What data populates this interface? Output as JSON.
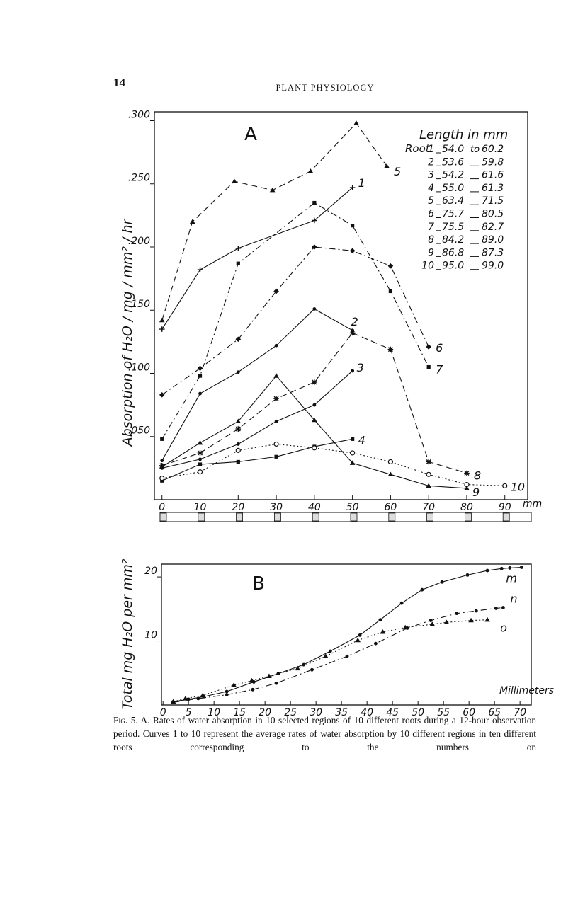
{
  "page_number": "14",
  "running_head": "PLANT PHYSIOLOGY",
  "chart_data": [
    {
      "type": "line",
      "title": "A",
      "y_label": "Absorption of H₂O / mg / mm² / hr",
      "x_label": "mm",
      "xlim": [
        -2,
        96
      ],
      "ylim": [
        0,
        0.307
      ],
      "xticks": [
        0,
        10,
        20,
        30,
        40,
        50,
        60,
        70,
        80,
        90
      ],
      "yticks": [
        {
          "value": 0.05,
          "label": ".050"
        },
        {
          "value": 0.1,
          "label": ".100"
        },
        {
          "value": 0.15,
          "label": ".150"
        },
        {
          "value": 0.2,
          "label": ".200"
        },
        {
          "value": 0.25,
          "label": ".250"
        },
        {
          "value": 0.3,
          "label": ".300"
        }
      ],
      "legend_table": {
        "title": "Length in mm",
        "row_label": "Root",
        "joiner": "to",
        "rows": [
          {
            "root": "1",
            "from": "54.0",
            "to": "60.2"
          },
          {
            "root": "2",
            "from": "53.6",
            "to": "59.8"
          },
          {
            "root": "3",
            "from": "54.2",
            "to": "61.6"
          },
          {
            "root": "4",
            "from": "55.0",
            "to": "61.3"
          },
          {
            "root": "5",
            "from": "63.4",
            "to": "71.5"
          },
          {
            "root": "6",
            "from": "75.7",
            "to": "80.5"
          },
          {
            "root": "7",
            "from": "75.5",
            "to": "82.7"
          },
          {
            "root": "8",
            "from": "84.2",
            "to": "89.0"
          },
          {
            "root": "9",
            "from": "86.8",
            "to": "87.3"
          },
          {
            "root": "10",
            "from": "95.0",
            "to": "99.0"
          }
        ]
      },
      "series": [
        {
          "name": "1",
          "color": "#111111",
          "dash": "solid",
          "marker": "plus",
          "x": [
            0,
            10,
            20,
            40,
            50
          ],
          "values": [
            0.135,
            0.182,
            0.199,
            0.221,
            0.247
          ]
        },
        {
          "name": "2",
          "color": "#111111",
          "dash": "solid",
          "marker": "dot",
          "x": [
            0,
            10,
            20,
            30,
            40,
            50
          ],
          "values": [
            0.031,
            0.084,
            0.101,
            0.122,
            0.151,
            0.134
          ]
        },
        {
          "name": "3",
          "color": "#111111",
          "dash": "solid",
          "marker": "dot",
          "x": [
            0,
            10,
            20,
            30,
            40,
            50
          ],
          "values": [
            0.025,
            0.032,
            0.044,
            0.062,
            0.075,
            0.102
          ]
        },
        {
          "name": "4",
          "color": "#111111",
          "dash": "solid",
          "marker": "square",
          "x": [
            0,
            10,
            20,
            30,
            40,
            50
          ],
          "values": [
            0.015,
            0.028,
            0.03,
            0.034,
            0.042,
            0.048
          ]
        },
        {
          "name": "5",
          "color": "#111111",
          "dash": "dashed",
          "marker": "triangle",
          "x": [
            0,
            8,
            19,
            29,
            39,
            51,
            59
          ],
          "values": [
            0.142,
            0.22,
            0.252,
            0.245,
            0.26,
            0.298,
            0.264
          ]
        },
        {
          "name": "6",
          "color": "#111111",
          "dash": "dashdot",
          "marker": "diamond",
          "x": [
            0,
            10,
            20,
            30,
            40,
            50,
            60,
            70
          ],
          "values": [
            0.083,
            0.104,
            0.127,
            0.165,
            0.2,
            0.197,
            0.185,
            0.121
          ]
        },
        {
          "name": "7",
          "color": "#111111",
          "dash": "dashdot",
          "marker": "square",
          "x": [
            0,
            10,
            20,
            40,
            50,
            60,
            70
          ],
          "values": [
            0.048,
            0.098,
            0.187,
            0.235,
            0.217,
            0.165,
            0.105
          ]
        },
        {
          "name": "8",
          "color": "#111111",
          "dash": "dashed",
          "marker": "star",
          "x": [
            0,
            10,
            20,
            30,
            40,
            50,
            60,
            70,
            80
          ],
          "values": [
            0.027,
            0.037,
            0.056,
            0.08,
            0.093,
            0.132,
            0.119,
            0.03,
            0.021
          ]
        },
        {
          "name": "9",
          "color": "#111111",
          "dash": "solid",
          "marker": "triangle",
          "x": [
            0,
            10,
            20,
            30,
            40,
            50,
            60,
            70,
            80
          ],
          "values": [
            0.026,
            0.045,
            0.062,
            0.098,
            0.063,
            0.029,
            0.02,
            0.011,
            0.009
          ]
        },
        {
          "name": "10",
          "color": "#111111",
          "dash": "dotted",
          "marker": "circle",
          "x": [
            0,
            10,
            20,
            30,
            40,
            50,
            60,
            70,
            80,
            90
          ],
          "values": [
            0.017,
            0.022,
            0.039,
            0.044,
            0.041,
            0.037,
            0.03,
            0.02,
            0.012,
            0.011
          ]
        }
      ]
    },
    {
      "type": "line",
      "title": "B",
      "y_label": "Total mg H₂O per mm²",
      "x_label": "Millimeters",
      "xlim": [
        -0.3,
        72.2
      ],
      "ylim": [
        0,
        22
      ],
      "xticks": [
        0,
        5,
        10,
        15,
        20,
        25,
        30,
        35,
        40,
        45,
        50,
        55,
        60,
        65,
        70
      ],
      "yticks": [
        10,
        20
      ],
      "series": [
        {
          "name": "m",
          "color": "#111111",
          "dash": "solid",
          "marker": "dot",
          "x": [
            2,
            5,
            8,
            12.5,
            17.8,
            22.6,
            27.6,
            32.8,
            38.6,
            42.6,
            46.8,
            50.8,
            54.7,
            59.7,
            63.6,
            66.4,
            68,
            70.3
          ],
          "values": [
            0.5,
            0.9,
            1.3,
            2.1,
            3.6,
            4.9,
            6.3,
            8.4,
            10.9,
            13.3,
            15.9,
            18.0,
            19.2,
            20.3,
            21.0,
            21.3,
            21.4,
            21.5
          ]
        },
        {
          "name": "n",
          "color": "#111111",
          "dash": "dashdot",
          "marker": "dot",
          "x": [
            2,
            6.9,
            12.5,
            17.6,
            22.2,
            29.2,
            36.1,
            41.7,
            47.9,
            52.5,
            57.6,
            61.4,
            65.3,
            66.7
          ],
          "values": [
            0.4,
            1.0,
            1.6,
            2.4,
            3.4,
            5.5,
            7.6,
            9.6,
            12.0,
            13.2,
            14.3,
            14.7,
            15.1,
            15.2
          ]
        },
        {
          "name": "o",
          "color": "#111111",
          "dash": "dotted",
          "marker": "triangle",
          "x": [
            2,
            4.4,
            7.8,
            13.9,
            17.4,
            20.8,
            26.4,
            31.9,
            38.2,
            43.1,
            47.5,
            52.8,
            55.6,
            60.4,
            63.6
          ],
          "values": [
            0.5,
            1.0,
            1.5,
            3.1,
            3.8,
            4.5,
            5.7,
            7.6,
            10.1,
            11.4,
            12.1,
            12.6,
            12.9,
            13.2,
            13.3
          ]
        }
      ]
    }
  ],
  "caption": {
    "label": "Fig. 5.",
    "text": "A. Rates of water absorption in 10 selected regions of 10 different roots during a 12-hour observation period. Curves 1 to 10 represent the average rates of water absorption by 10 different regions in ten different roots corresponding to the numbers on"
  }
}
